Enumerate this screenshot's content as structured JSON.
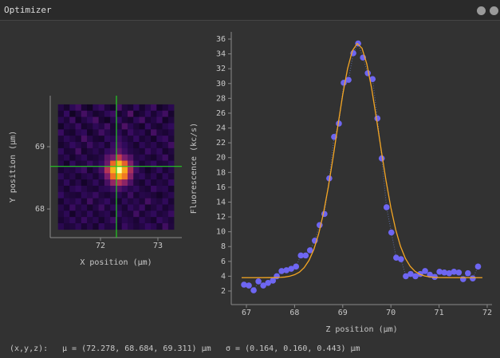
{
  "window": {
    "title": "Optimizer"
  },
  "chart_data": [
    {
      "type": "heatmap",
      "x_label": "X position (μm)",
      "y_label": "Y position (μm)",
      "xlim": [
        71.125,
        73.417
      ],
      "ylim": [
        67.54,
        69.82
      ],
      "xticks": [
        72,
        73
      ],
      "yticks": [
        68,
        69
      ],
      "x_extent": [
        71.26,
        73.28
      ],
      "y_extent": [
        67.67,
        69.68
      ],
      "zlim": [
        0,
        100
      ],
      "colormap": [
        "#000004",
        "#320a5e",
        "#781c6d",
        "#bc3754",
        "#ed6925",
        "#fbb61a",
        "#fcffa4"
      ],
      "crosshair": {
        "x": 72.278,
        "y": 68.684,
        "color": "#22cc22"
      },
      "z": [
        [
          12,
          8,
          15,
          20,
          9,
          6,
          14,
          18,
          10,
          7,
          22,
          11,
          9,
          16,
          8,
          13,
          19,
          7,
          10,
          14
        ],
        [
          9,
          17,
          6,
          11,
          21,
          13,
          8,
          10,
          15,
          19,
          8,
          12,
          24,
          7,
          10,
          16,
          9,
          14,
          20,
          8
        ],
        [
          14,
          10,
          19,
          7,
          12,
          16,
          22,
          9,
          6,
          13,
          17,
          10,
          8,
          15,
          21,
          9,
          12,
          18,
          7,
          11
        ],
        [
          7,
          13,
          11,
          18,
          8,
          10,
          15,
          12,
          20,
          9,
          11,
          23,
          14,
          10,
          7,
          17,
          10,
          8,
          13,
          16
        ],
        [
          18,
          9,
          8,
          14,
          16,
          7,
          11,
          20,
          13,
          10,
          15,
          9,
          18,
          12,
          14,
          8,
          21,
          11,
          9,
          12
        ],
        [
          10,
          15,
          12,
          9,
          22,
          13,
          9,
          8,
          16,
          14,
          19,
          13,
          10,
          17,
          9,
          12,
          7,
          15,
          18,
          10
        ],
        [
          8,
          11,
          17,
          13,
          10,
          19,
          12,
          15,
          9,
          18,
          22,
          16,
          12,
          8,
          15,
          11,
          14,
          9,
          12,
          20
        ],
        [
          16,
          9,
          10,
          21,
          8,
          11,
          14,
          10,
          17,
          20,
          28,
          19,
          13,
          11,
          9,
          18,
          12,
          16,
          8,
          11
        ],
        [
          11,
          14,
          8,
          12,
          15,
          9,
          10,
          13,
          26,
          33,
          52,
          34,
          24,
          12,
          14,
          10,
          8,
          13,
          19,
          9
        ],
        [
          13,
          7,
          16,
          10,
          11,
          18,
          12,
          17,
          30,
          66,
          84,
          64,
          35,
          16,
          9,
          13,
          17,
          10,
          11,
          15
        ],
        [
          9,
          12,
          11,
          15,
          19,
          8,
          13,
          22,
          48,
          82,
          100,
          80,
          45,
          20,
          12,
          7,
          11,
          16,
          9,
          13
        ],
        [
          15,
          10,
          13,
          8,
          12,
          14,
          9,
          15,
          34,
          68,
          83,
          70,
          37,
          13,
          16,
          10,
          14,
          8,
          15,
          10
        ],
        [
          10,
          16,
          9,
          13,
          7,
          11,
          16,
          10,
          22,
          40,
          48,
          38,
          23,
          11,
          8,
          15,
          9,
          12,
          10,
          17
        ],
        [
          12,
          8,
          14,
          17,
          13,
          10,
          9,
          14,
          15,
          20,
          24,
          18,
          13,
          16,
          11,
          9,
          18,
          13,
          14,
          8
        ],
        [
          17,
          11,
          10,
          9,
          15,
          13,
          18,
          11,
          9,
          12,
          14,
          10,
          19,
          9,
          13,
          12,
          10,
          7,
          11,
          14
        ],
        [
          8,
          14,
          12,
          16,
          9,
          20,
          10,
          13,
          17,
          10,
          8,
          15,
          11,
          14,
          10,
          21,
          13,
          11,
          16,
          9
        ],
        [
          13,
          9,
          18,
          11,
          14,
          8,
          12,
          19,
          10,
          15,
          13,
          9,
          16,
          12,
          18,
          8,
          11,
          15,
          9,
          12
        ],
        [
          11,
          15,
          7,
          13,
          10,
          16,
          9,
          12,
          14,
          8,
          17,
          11,
          10,
          20,
          9,
          13,
          16,
          10,
          12,
          18
        ],
        [
          9,
          12,
          16,
          10,
          18,
          11,
          14,
          8,
          13,
          19,
          10,
          14,
          12,
          9,
          15,
          11,
          8,
          17,
          13,
          10
        ],
        [
          14,
          10,
          11,
          15,
          9,
          13,
          8,
          16,
          11,
          12,
          9,
          18,
          13,
          10,
          12,
          17,
          14,
          9,
          20,
          11
        ]
      ]
    },
    {
      "type": "scatter",
      "x_label": "Z position (μm)",
      "y_label": "Fluorescence (kc/s)",
      "xlim": [
        66.685,
        72.1
      ],
      "ylim": [
        0.17,
        36.97
      ],
      "xticks": [
        67,
        68,
        69,
        70,
        71,
        72
      ],
      "yticks": [
        2,
        4,
        6,
        8,
        10,
        12,
        14,
        16,
        18,
        20,
        22,
        24,
        26,
        28,
        30,
        32,
        34,
        36
      ],
      "series": [
        {
          "style": "markers",
          "color": "#6e66f2",
          "connector_color": "#5a6aa0",
          "x": [
            66.95,
            67.05,
            67.15,
            67.25,
            67.35,
            67.45,
            67.55,
            67.63,
            67.73,
            67.83,
            67.93,
            68.03,
            68.13,
            68.23,
            68.32,
            68.42,
            68.52,
            68.62,
            68.72,
            68.82,
            68.92,
            69.02,
            69.12,
            69.22,
            69.32,
            69.42,
            69.52,
            69.62,
            69.72,
            69.81,
            69.91,
            70.01,
            70.11,
            70.21,
            70.31,
            70.41,
            70.51,
            70.61,
            70.71,
            70.81,
            70.91,
            71.01,
            71.11,
            71.21,
            71.31,
            71.41,
            71.5,
            71.6,
            71.7,
            71.81
          ],
          "values": [
            2.86,
            2.75,
            2.1,
            3.3,
            2.75,
            3.1,
            3.4,
            4.0,
            4.7,
            4.8,
            5.0,
            5.3,
            6.8,
            6.8,
            7.5,
            8.8,
            10.9,
            12.4,
            17.2,
            22.8,
            24.6,
            30.1,
            30.5,
            34.1,
            35.4,
            33.5,
            31.4,
            30.6,
            25.3,
            19.9,
            13.3,
            9.9,
            6.5,
            6.3,
            4.0,
            4.3,
            4.0,
            4.3,
            4.7,
            4.2,
            3.9,
            4.6,
            4.5,
            4.4,
            4.6,
            4.5,
            3.6,
            4.4,
            3.7,
            5.3
          ]
        },
        {
          "style": "line",
          "color": "#f5a623",
          "x": [
            66.9,
            67.2,
            67.5,
            67.6,
            67.7,
            67.8,
            67.9,
            68.0,
            68.1,
            68.2,
            68.3,
            68.4,
            68.5,
            68.6,
            68.7,
            68.8,
            68.9,
            69.0,
            69.1,
            69.2,
            69.3,
            69.4,
            69.5,
            69.6,
            69.7,
            69.8,
            69.9,
            70.0,
            70.1,
            70.2,
            70.3,
            70.4,
            70.5,
            70.6,
            70.7,
            70.8,
            70.9,
            71.0,
            71.3,
            71.6,
            71.9
          ],
          "values": [
            3.8,
            3.8,
            3.81,
            3.82,
            3.84,
            3.89,
            4.0,
            4.2,
            4.55,
            5.16,
            6.14,
            7.61,
            9.71,
            12.52,
            16.01,
            20.05,
            24.35,
            28.5,
            32.01,
            34.42,
            35.4,
            34.77,
            32.65,
            29.34,
            25.29,
            20.98,
            16.86,
            13.23,
            10.27,
            8.02,
            6.41,
            5.34,
            4.66,
            4.26,
            4.03,
            3.91,
            3.85,
            3.82,
            3.8,
            3.8,
            3.8
          ]
        }
      ]
    }
  ],
  "status": {
    "label": "(x,y,z):",
    "mu": "μ = (72.278, 68.684, 69.311) μm",
    "sigma": "σ = (0.164, 0.160, 0.443) μm"
  }
}
